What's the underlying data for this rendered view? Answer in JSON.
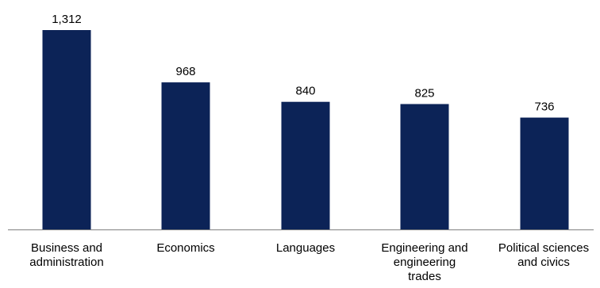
{
  "chart_data": {
    "type": "bar",
    "categories": [
      [
        "Business and",
        "administration"
      ],
      [
        "Economics"
      ],
      [
        "Languages"
      ],
      [
        "Engineering and",
        "engineering",
        "trades"
      ],
      [
        "Political sciences",
        "and civics"
      ]
    ],
    "values": [
      1312,
      968,
      840,
      825,
      736
    ],
    "value_labels": [
      "1,312",
      "968",
      "840",
      "825",
      "736"
    ],
    "ylim": [
      0,
      1312
    ],
    "bar_color": "#0c2357",
    "axis_color": "#7f7f7f",
    "grid": false,
    "legend": "none"
  }
}
